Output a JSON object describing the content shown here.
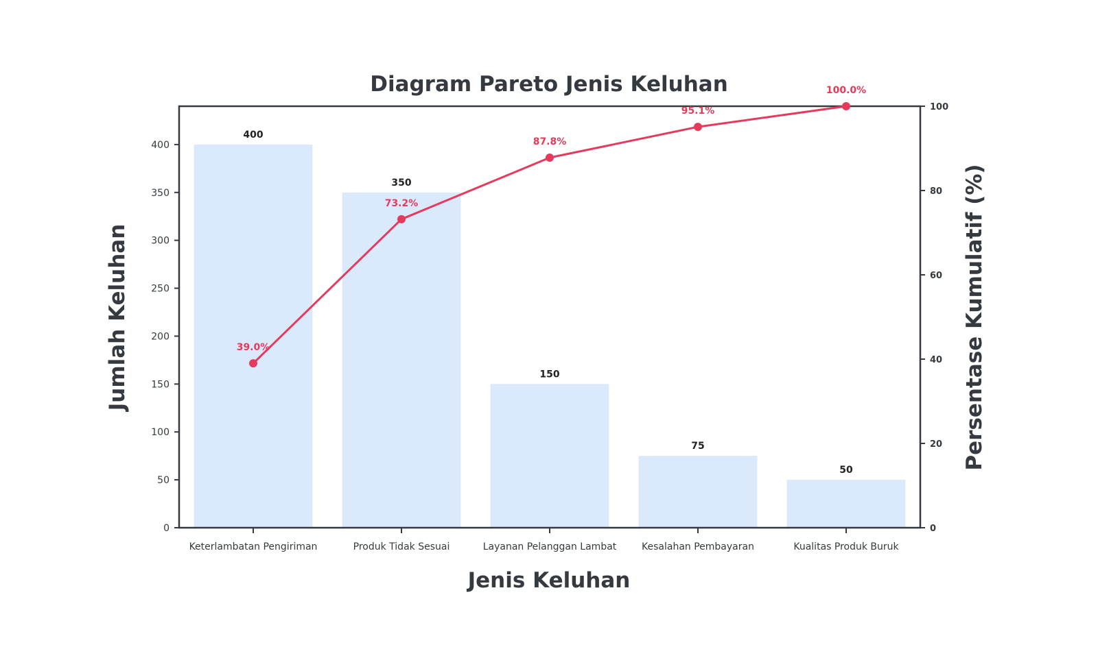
{
  "chart_data": {
    "type": "bar",
    "title": "Diagram Pareto Jenis Keluhan",
    "xlabel": "Jenis Keluhan",
    "ylabel": "Jumlah Keluhan",
    "y2label": "Persentase Kumulatif (%)",
    "categories": [
      "Keterlambatan Pengiriman",
      "Produk Tidak Sesuai",
      "Layanan Pelanggan Lambat",
      "Kesalahan Pembayaran",
      "Kualitas Produk Buruk"
    ],
    "series": [
      {
        "type": "bar",
        "axis": "left",
        "values": [
          400,
          350,
          150,
          75,
          50
        ],
        "labels": [
          "400",
          "350",
          "150",
          "75",
          "50"
        ]
      },
      {
        "type": "line",
        "axis": "right",
        "values": [
          39.0,
          73.2,
          87.8,
          95.1,
          100.0
        ],
        "labels": [
          "39.0%",
          "73.2%",
          "87.8%",
          "95.1%",
          "100.0%"
        ]
      }
    ],
    "ylim": [
      0,
      440
    ],
    "y2lim": [
      0,
      100
    ],
    "yticks": [
      "0",
      "50",
      "100",
      "150",
      "200",
      "250",
      "300",
      "350",
      "400"
    ],
    "y2ticks": [
      "0",
      "20",
      "40",
      "60",
      "80",
      "100"
    ],
    "grid": false,
    "colors": {
      "bar": "#dbe9fc",
      "line": "#e63a5c",
      "axis": "#343a40"
    }
  }
}
